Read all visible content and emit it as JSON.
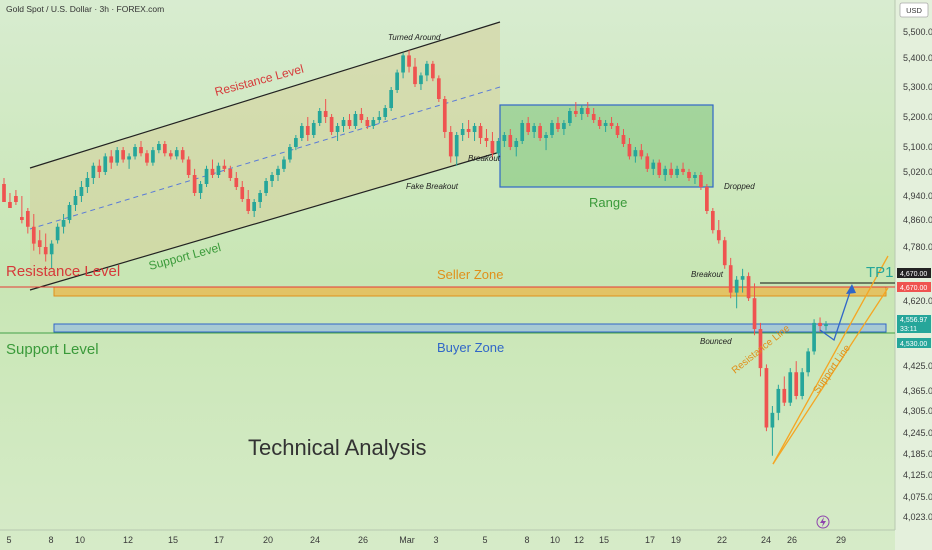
{
  "header": {
    "symbol_title": "Gold Spot / U.S. Dollar · 3h · FOREX.com",
    "currency": "USD"
  },
  "main_title": "Technical Analysis",
  "bottom_icon": "lightning-icon",
  "chart_data": {
    "type": "candlestick",
    "title": "Gold Spot / U.S. Dollar · 3h · FOREX.com",
    "ylabel": "USD",
    "ylim": [
      4000,
      5560
    ],
    "y_ticks": [
      {
        "label": "5,500.00",
        "v": 5500
      },
      {
        "label": "5,400.00",
        "v": 5400
      },
      {
        "label": "5,300.00",
        "v": 5300
      },
      {
        "label": "5,200.00",
        "v": 5200
      },
      {
        "label": "5,100.00",
        "v": 5100
      },
      {
        "label": "5,020.00",
        "v": 5020
      },
      {
        "label": "4,940.00",
        "v": 4940
      },
      {
        "label": "4,860.00",
        "v": 4860
      },
      {
        "label": "4,780.00",
        "v": 4780
      },
      {
        "label": "4,620.00",
        "v": 4620
      },
      {
        "label": "4,425.00",
        "v": 4425
      },
      {
        "label": "4,365.00",
        "v": 4365
      },
      {
        "label": "4,305.00",
        "v": 4305
      },
      {
        "label": "4,245.00",
        "v": 4245
      },
      {
        "label": "4,185.00",
        "v": 4185
      },
      {
        "label": "4,125.00",
        "v": 4125
      },
      {
        "label": "4,075.00",
        "v": 4075
      },
      {
        "label": "4,023.00",
        "v": 4023
      }
    ],
    "x_ticks": [
      "5",
      "8",
      "10",
      "12",
      "15",
      "17",
      "20",
      "24",
      "26",
      "Mar",
      "3",
      "5",
      "8",
      "10",
      "12",
      "15",
      "17",
      "19",
      "22",
      "24",
      "26",
      "29"
    ],
    "price_tags": [
      {
        "label": "4,670.00",
        "value": 4670,
        "color": "#222222"
      },
      {
        "label": "4,670.00",
        "value": 4670,
        "color": "#ef5350"
      },
      {
        "label": "4,556.97",
        "sub": "33:11",
        "value": 4556.97,
        "color": "#26a69a"
      },
      {
        "label": "4,530.00",
        "value": 4530,
        "color": "#26a69a"
      }
    ],
    "zones": {
      "seller_zone": {
        "label": "Seller Zone",
        "top": 4674,
        "bottom": 4645,
        "color": "#f5a623"
      },
      "buyer_zone": {
        "label": "Buyer Zone",
        "top": 4555,
        "bottom": 4530,
        "color": "#4a90d9"
      },
      "range_box": {
        "label": "Range",
        "top": 5262,
        "bottom": 4995,
        "color": "#4caf50"
      },
      "resistance_level": {
        "label": "Resistance Level",
        "value": 4670,
        "color": "#e53935"
      },
      "support_level": {
        "label": "Support Level",
        "value": 4530,
        "color": "#43a047"
      }
    },
    "channel_labels": {
      "resistance": "Resistance Level",
      "support": "Support Level",
      "turned_around": "Turned Around",
      "fake_breakout": "Fake Breakout",
      "breakout_1": "Breakout",
      "dropped": "Dropped",
      "breakout_2": "Breakout",
      "bounced": "Bounced",
      "resistance_line": "Resistance Line",
      "support_line": "Support Line",
      "tp": "TP1"
    },
    "candles": [
      [
        4980,
        5000,
        4930,
        4920
      ],
      [
        4920,
        4950,
        4900,
        4900
      ],
      [
        4940,
        4960,
        4910,
        4920
      ],
      [
        4870,
        4940,
        4850,
        4860
      ],
      [
        4890,
        4900,
        4820,
        4840
      ],
      [
        4840,
        4880,
        4770,
        4790
      ],
      [
        4800,
        4830,
        4760,
        4780
      ],
      [
        4780,
        4820,
        4740,
        4760
      ],
      [
        4760,
        4800,
        4720,
        4790
      ],
      [
        4800,
        4850,
        4790,
        4840
      ],
      [
        4840,
        4880,
        4820,
        4860
      ],
      [
        4860,
        4920,
        4850,
        4910
      ],
      [
        4910,
        4960,
        4890,
        4940
      ],
      [
        4940,
        4990,
        4920,
        4970
      ],
      [
        4970,
        5020,
        4950,
        5000
      ],
      [
        5000,
        5050,
        4980,
        5040
      ],
      [
        5040,
        5060,
        5000,
        5020
      ],
      [
        5020,
        5080,
        5010,
        5070
      ],
      [
        5070,
        5090,
        5030,
        5050
      ],
      [
        5050,
        5100,
        5040,
        5090
      ],
      [
        5090,
        5100,
        5050,
        5060
      ],
      [
        5060,
        5080,
        5030,
        5070
      ],
      [
        5070,
        5110,
        5060,
        5100
      ],
      [
        5100,
        5120,
        5070,
        5080
      ],
      [
        5080,
        5090,
        5040,
        5050
      ],
      [
        5050,
        5100,
        5040,
        5090
      ],
      [
        5090,
        5120,
        5080,
        5110
      ],
      [
        5110,
        5120,
        5070,
        5080
      ],
      [
        5080,
        5090,
        5060,
        5070
      ],
      [
        5070,
        5100,
        5060,
        5090
      ],
      [
        5090,
        5100,
        5050,
        5060
      ],
      [
        5060,
        5070,
        5000,
        5010
      ],
      [
        5010,
        5030,
        4940,
        4950
      ],
      [
        4950,
        4990,
        4930,
        4980
      ],
      [
        4980,
        5040,
        4970,
        5030
      ],
      [
        5030,
        5060,
        5000,
        5010
      ],
      [
        5010,
        5050,
        5000,
        5040
      ],
      [
        5040,
        5060,
        5020,
        5030
      ],
      [
        5030,
        5040,
        4990,
        5000
      ],
      [
        5000,
        5020,
        4960,
        4970
      ],
      [
        4970,
        4990,
        4920,
        4930
      ],
      [
        4930,
        4960,
        4880,
        4890
      ],
      [
        4890,
        4930,
        4870,
        4920
      ],
      [
        4920,
        4960,
        4900,
        4950
      ],
      [
        4950,
        5000,
        4940,
        4990
      ],
      [
        4990,
        5020,
        4970,
        5010
      ],
      [
        5010,
        5040,
        4990,
        5030
      ],
      [
        5030,
        5070,
        5020,
        5060
      ],
      [
        5060,
        5110,
        5050,
        5100
      ],
      [
        5100,
        5140,
        5090,
        5130
      ],
      [
        5130,
        5180,
        5120,
        5170
      ],
      [
        5170,
        5200,
        5120,
        5140
      ],
      [
        5140,
        5190,
        5130,
        5180
      ],
      [
        5180,
        5230,
        5170,
        5220
      ],
      [
        5220,
        5260,
        5180,
        5200
      ],
      [
        5200,
        5210,
        5140,
        5150
      ],
      [
        5150,
        5180,
        5120,
        5170
      ],
      [
        5170,
        5200,
        5150,
        5190
      ],
      [
        5190,
        5210,
        5160,
        5170
      ],
      [
        5170,
        5220,
        5160,
        5210
      ],
      [
        5210,
        5230,
        5180,
        5190
      ],
      [
        5190,
        5200,
        5160,
        5170
      ],
      [
        5170,
        5200,
        5160,
        5190
      ],
      [
        5190,
        5220,
        5180,
        5200
      ],
      [
        5200,
        5240,
        5190,
        5230
      ],
      [
        5230,
        5300,
        5220,
        5290
      ],
      [
        5290,
        5360,
        5280,
        5350
      ],
      [
        5350,
        5420,
        5330,
        5410
      ],
      [
        5410,
        5430,
        5350,
        5370
      ],
      [
        5370,
        5400,
        5300,
        5310
      ],
      [
        5310,
        5350,
        5290,
        5340
      ],
      [
        5340,
        5390,
        5320,
        5380
      ],
      [
        5380,
        5390,
        5320,
        5330
      ],
      [
        5330,
        5340,
        5250,
        5260
      ],
      [
        5260,
        5270,
        5130,
        5150
      ],
      [
        5150,
        5170,
        5050,
        5070
      ],
      [
        5070,
        5150,
        5040,
        5140
      ],
      [
        5140,
        5180,
        5120,
        5160
      ],
      [
        5160,
        5190,
        5130,
        5150
      ],
      [
        5150,
        5180,
        5120,
        5170
      ],
      [
        5170,
        5180,
        5110,
        5130
      ],
      [
        5130,
        5160,
        5100,
        5120
      ],
      [
        5120,
        5150,
        5060,
        5080
      ],
      [
        5080,
        5130,
        5060,
        5120
      ],
      [
        5120,
        5150,
        5100,
        5140
      ],
      [
        5140,
        5160,
        5090,
        5100
      ],
      [
        5100,
        5130,
        5070,
        5120
      ],
      [
        5120,
        5190,
        5110,
        5180
      ],
      [
        5180,
        5200,
        5140,
        5150
      ],
      [
        5150,
        5180,
        5130,
        5170
      ],
      [
        5170,
        5180,
        5120,
        5130
      ],
      [
        5130,
        5150,
        5090,
        5140
      ],
      [
        5140,
        5190,
        5130,
        5180
      ],
      [
        5180,
        5200,
        5150,
        5160
      ],
      [
        5160,
        5190,
        5140,
        5180
      ],
      [
        5180,
        5230,
        5170,
        5220
      ],
      [
        5220,
        5250,
        5200,
        5210
      ],
      [
        5210,
        5240,
        5190,
        5230
      ],
      [
        5230,
        5250,
        5200,
        5210
      ],
      [
        5210,
        5230,
        5180,
        5190
      ],
      [
        5190,
        5200,
        5160,
        5170
      ],
      [
        5170,
        5190,
        5150,
        5180
      ],
      [
        5180,
        5200,
        5160,
        5170
      ],
      [
        5170,
        5180,
        5130,
        5140
      ],
      [
        5140,
        5160,
        5100,
        5110
      ],
      [
        5110,
        5130,
        5060,
        5070
      ],
      [
        5070,
        5100,
        5050,
        5090
      ],
      [
        5090,
        5110,
        5060,
        5070
      ],
      [
        5070,
        5080,
        5020,
        5030
      ],
      [
        5030,
        5060,
        5010,
        5050
      ],
      [
        5050,
        5060,
        5000,
        5010
      ],
      [
        5010,
        5040,
        4990,
        5030
      ],
      [
        5030,
        5050,
        5000,
        5010
      ],
      [
        5010,
        5040,
        5000,
        5030
      ],
      [
        5030,
        5050,
        5010,
        5020
      ],
      [
        5020,
        5030,
        4990,
        5000
      ],
      [
        5000,
        5020,
        4980,
        5010
      ],
      [
        5010,
        5020,
        4960,
        4970
      ],
      [
        4970,
        4980,
        4880,
        4890
      ],
      [
        4890,
        4900,
        4820,
        4830
      ],
      [
        4830,
        4860,
        4790,
        4800
      ],
      [
        4800,
        4810,
        4720,
        4730
      ],
      [
        4730,
        4750,
        4630,
        4650
      ],
      [
        4650,
        4700,
        4600,
        4690
      ],
      [
        4690,
        4720,
        4650,
        4700
      ],
      [
        4700,
        4710,
        4620,
        4630
      ],
      [
        4630,
        4680,
        4520,
        4540
      ],
      [
        4540,
        4560,
        4400,
        4420
      ],
      [
        4420,
        4430,
        4250,
        4260
      ],
      [
        4260,
        4320,
        4180,
        4300
      ],
      [
        4300,
        4380,
        4280,
        4370
      ],
      [
        4370,
        4400,
        4320,
        4330
      ],
      [
        4330,
        4420,
        4320,
        4410
      ],
      [
        4410,
        4440,
        4340,
        4350
      ],
      [
        4350,
        4420,
        4340,
        4410
      ],
      [
        4410,
        4480,
        4400,
        4470
      ],
      [
        4470,
        4570,
        4460,
        4560
      ],
      [
        4560,
        4575,
        4530,
        4550
      ],
      [
        4550,
        4565,
        4535,
        4557
      ]
    ]
  }
}
